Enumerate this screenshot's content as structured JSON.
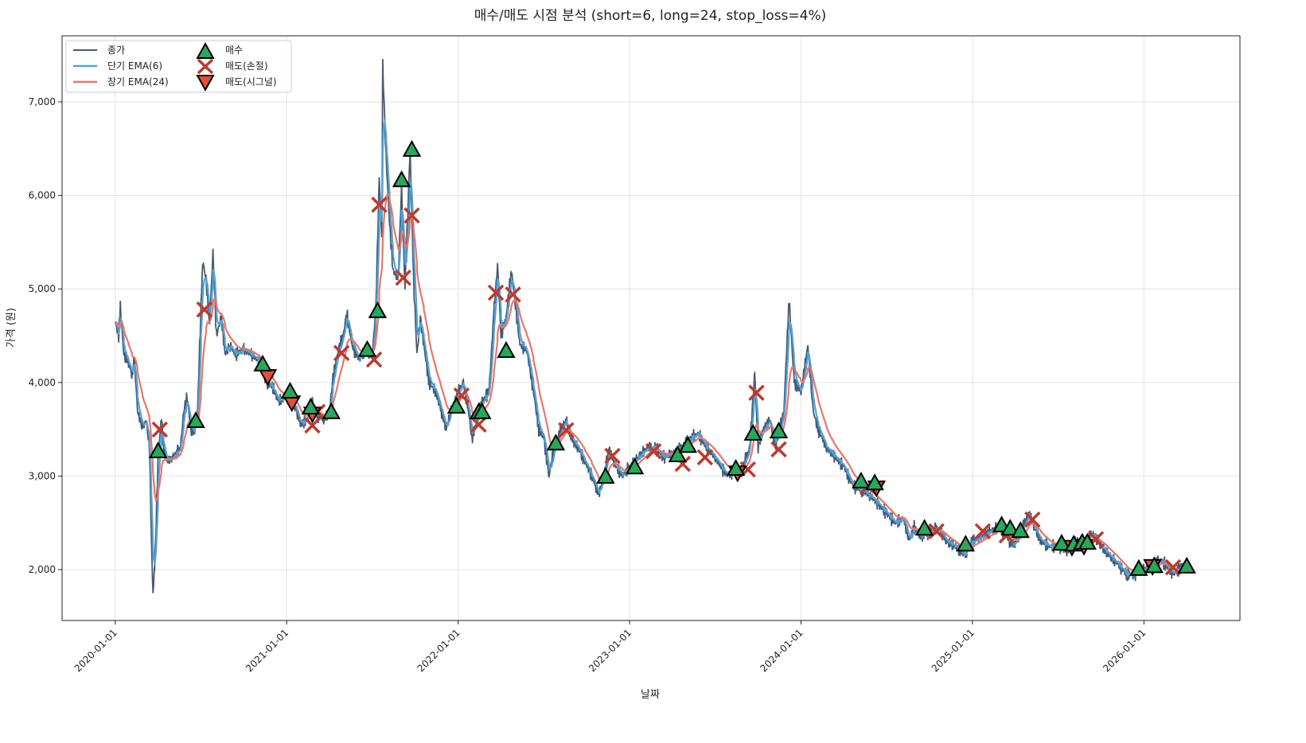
{
  "chart_data": {
    "type": "line",
    "title": "매수/매도 시점 분석 (short=6, long=24, stop_loss=4%)",
    "xlabel": "날짜",
    "ylabel": "가격 (원)",
    "xlim": [
      2019.69,
      2026.56
    ],
    "ylim": [
      1456,
      7706
    ],
    "grid": true,
    "legend_placement": "top-left",
    "x_ticks": [
      {
        "value": 2020,
        "label": "2020-01-01"
      },
      {
        "value": 2021,
        "label": "2021-01-01"
      },
      {
        "value": 2022,
        "label": "2022-01-01"
      },
      {
        "value": 2023,
        "label": "2023-01-01"
      },
      {
        "value": 2024,
        "label": "2024-01-01"
      },
      {
        "value": 2025,
        "label": "2025-01-01"
      },
      {
        "value": 2026,
        "label": "2026-01-01"
      }
    ],
    "y_ticks": [
      {
        "value": 2000,
        "label": "2,000"
      },
      {
        "value": 3000,
        "label": "3,000"
      },
      {
        "value": 4000,
        "label": "4,000"
      },
      {
        "value": 5000,
        "label": "5,000"
      },
      {
        "value": 6000,
        "label": "6,000"
      },
      {
        "value": 7000,
        "label": "7,000"
      }
    ],
    "legend": {
      "close": "종가",
      "ema_short": "단기 EMA(6)",
      "ema_long": "장기 EMA(24)",
      "buy": "매수",
      "sell_stop": "매도(손절)",
      "sell_signal": "매도(시그널)"
    },
    "colors": {
      "close": "#4a5a6e",
      "ema_short": "#4ea3dc",
      "ema_long": "#ee7466",
      "buy": "#27a85a",
      "sell_stop": "#c0392b",
      "sell_signal": "#e74c3c"
    },
    "ema_spans": {
      "short": 6,
      "long": 24
    },
    "close": [
      [
        2020.0,
        4650
      ],
      [
        2020.02,
        4500
      ],
      [
        2020.03,
        4800
      ],
      [
        2020.05,
        4300
      ],
      [
        2020.08,
        4200
      ],
      [
        2020.1,
        4050
      ],
      [
        2020.11,
        4300
      ],
      [
        2020.13,
        3700
      ],
      [
        2020.16,
        3500
      ],
      [
        2020.18,
        3600
      ],
      [
        2020.2,
        3300
      ],
      [
        2020.21,
        2400
      ],
      [
        2020.22,
        1750
      ],
      [
        2020.23,
        2000
      ],
      [
        2020.25,
        3200
      ],
      [
        2020.27,
        3650
      ],
      [
        2020.28,
        3300
      ],
      [
        2020.3,
        3150
      ],
      [
        2020.33,
        3200
      ],
      [
        2020.36,
        3250
      ],
      [
        2020.38,
        3300
      ],
      [
        2020.4,
        3700
      ],
      [
        2020.42,
        3850
      ],
      [
        2020.44,
        3500
      ],
      [
        2020.46,
        3450
      ],
      [
        2020.48,
        3700
      ],
      [
        2020.5,
        4800
      ],
      [
        2020.51,
        5300
      ],
      [
        2020.53,
        5100
      ],
      [
        2020.55,
        4600
      ],
      [
        2020.57,
        5400
      ],
      [
        2020.59,
        4500
      ],
      [
        2020.62,
        4700
      ],
      [
        2020.64,
        4300
      ],
      [
        2020.67,
        4400
      ],
      [
        2020.7,
        4300
      ],
      [
        2020.75,
        4350
      ],
      [
        2020.8,
        4300
      ],
      [
        2020.85,
        4200
      ],
      [
        2020.88,
        4000
      ],
      [
        2020.92,
        3950
      ],
      [
        2020.95,
        3800
      ],
      [
        2021.0,
        3850
      ],
      [
        2021.05,
        3750
      ],
      [
        2021.08,
        3550
      ],
      [
        2021.12,
        3600
      ],
      [
        2021.15,
        3800
      ],
      [
        2021.18,
        3650
      ],
      [
        2021.22,
        3600
      ],
      [
        2021.25,
        3700
      ],
      [
        2021.27,
        4050
      ],
      [
        2021.3,
        4350
      ],
      [
        2021.33,
        4500
      ],
      [
        2021.35,
        4750
      ],
      [
        2021.38,
        4400
      ],
      [
        2021.42,
        4250
      ],
      [
        2021.46,
        4350
      ],
      [
        2021.5,
        4300
      ],
      [
        2021.52,
        4800
      ],
      [
        2021.54,
        6200
      ],
      [
        2021.555,
        5500
      ],
      [
        2021.56,
        7400
      ],
      [
        2021.58,
        6400
      ],
      [
        2021.6,
        5700
      ],
      [
        2021.62,
        5200
      ],
      [
        2021.65,
        5100
      ],
      [
        2021.67,
        6100
      ],
      [
        2021.69,
        5000
      ],
      [
        2021.72,
        6500
      ],
      [
        2021.74,
        5100
      ],
      [
        2021.76,
        4300
      ],
      [
        2021.78,
        4700
      ],
      [
        2021.8,
        4400
      ],
      [
        2021.83,
        4000
      ],
      [
        2021.87,
        3900
      ],
      [
        2021.9,
        3700
      ],
      [
        2021.93,
        3500
      ],
      [
        2021.96,
        3700
      ],
      [
        2022.0,
        3900
      ],
      [
        2022.03,
        4000
      ],
      [
        2022.06,
        3700
      ],
      [
        2022.08,
        3400
      ],
      [
        2022.11,
        3600
      ],
      [
        2022.14,
        3800
      ],
      [
        2022.18,
        3900
      ],
      [
        2022.21,
        4800
      ],
      [
        2022.23,
        5250
      ],
      [
        2022.25,
        4500
      ],
      [
        2022.28,
        4700
      ],
      [
        2022.31,
        5200
      ],
      [
        2022.33,
        4900
      ],
      [
        2022.36,
        4400
      ],
      [
        2022.4,
        4350
      ],
      [
        2022.44,
        3900
      ],
      [
        2022.47,
        3500
      ],
      [
        2022.5,
        3400
      ],
      [
        2022.53,
        3000
      ],
      [
        2022.56,
        3300
      ],
      [
        2022.6,
        3500
      ],
      [
        2022.63,
        3600
      ],
      [
        2022.66,
        3400
      ],
      [
        2022.7,
        3300
      ],
      [
        2022.74,
        3150
      ],
      [
        2022.78,
        3000
      ],
      [
        2022.82,
        2800
      ],
      [
        2022.85,
        3000
      ],
      [
        2022.88,
        3300
      ],
      [
        2022.92,
        3100
      ],
      [
        2022.96,
        3000
      ],
      [
        2023.0,
        3100
      ],
      [
        2023.05,
        3200
      ],
      [
        2023.1,
        3300
      ],
      [
        2023.15,
        3300
      ],
      [
        2023.2,
        3200
      ],
      [
        2023.25,
        3250
      ],
      [
        2023.3,
        3300
      ],
      [
        2023.35,
        3400
      ],
      [
        2023.4,
        3450
      ],
      [
        2023.45,
        3300
      ],
      [
        2023.5,
        3200
      ],
      [
        2023.55,
        3050
      ],
      [
        2023.58,
        3000
      ],
      [
        2023.62,
        3050
      ],
      [
        2023.66,
        3100
      ],
      [
        2023.7,
        3300
      ],
      [
        2023.73,
        4100
      ],
      [
        2023.75,
        3300
      ],
      [
        2023.78,
        3500
      ],
      [
        2023.82,
        3600
      ],
      [
        2023.85,
        3300
      ],
      [
        2023.9,
        3700
      ],
      [
        2023.93,
        4900
      ],
      [
        2023.96,
        4000
      ],
      [
        2024.0,
        3900
      ],
      [
        2024.04,
        4400
      ],
      [
        2024.07,
        3700
      ],
      [
        2024.1,
        3500
      ],
      [
        2024.15,
        3300
      ],
      [
        2024.2,
        3200
      ],
      [
        2024.25,
        3100
      ],
      [
        2024.3,
        2900
      ],
      [
        2024.35,
        2850
      ],
      [
        2024.4,
        2800
      ],
      [
        2024.45,
        2700
      ],
      [
        2024.5,
        2600
      ],
      [
        2024.55,
        2500
      ],
      [
        2024.6,
        2550
      ],
      [
        2024.63,
        2300
      ],
      [
        2024.66,
        2450
      ],
      [
        2024.7,
        2350
      ],
      [
        2024.75,
        2400
      ],
      [
        2024.8,
        2450
      ],
      [
        2024.85,
        2300
      ],
      [
        2024.9,
        2250
      ],
      [
        2024.95,
        2150
      ],
      [
        2025.0,
        2300
      ],
      [
        2025.05,
        2350
      ],
      [
        2025.1,
        2400
      ],
      [
        2025.15,
        2450
      ],
      [
        2025.2,
        2350
      ],
      [
        2025.24,
        2250
      ],
      [
        2025.28,
        2400
      ],
      [
        2025.33,
        2600
      ],
      [
        2025.36,
        2450
      ],
      [
        2025.4,
        2300
      ],
      [
        2025.45,
        2250
      ],
      [
        2025.5,
        2250
      ],
      [
        2025.55,
        2200
      ],
      [
        2025.6,
        2300
      ],
      [
        2025.65,
        2250
      ],
      [
        2025.7,
        2400
      ],
      [
        2025.75,
        2250
      ],
      [
        2025.8,
        2150
      ],
      [
        2025.85,
        2050
      ],
      [
        2025.9,
        1950
      ],
      [
        2025.95,
        1950
      ],
      [
        2026.0,
        2000
      ],
      [
        2026.05,
        2050
      ],
      [
        2026.1,
        2100
      ],
      [
        2026.15,
        2000
      ],
      [
        2026.18,
        1950
      ],
      [
        2026.22,
        2050
      ],
      [
        2026.25,
        2050
      ]
    ],
    "buy": [
      [
        2020.25,
        3267
      ],
      [
        2020.47,
        3590
      ],
      [
        2020.86,
        4195
      ],
      [
        2021.02,
        3905
      ],
      [
        2021.14,
        3735
      ],
      [
        2021.26,
        3685
      ],
      [
        2021.47,
        4350
      ],
      [
        2021.53,
        4765
      ],
      [
        2021.67,
        6165
      ],
      [
        2021.73,
        6490
      ],
      [
        2021.99,
        3745
      ],
      [
        2022.12,
        3685
      ],
      [
        2022.14,
        3685
      ],
      [
        2022.28,
        4340
      ],
      [
        2022.57,
        3350
      ],
      [
        2022.86,
        2995
      ],
      [
        2023.03,
        3095
      ],
      [
        2023.28,
        3225
      ],
      [
        2023.34,
        3325
      ],
      [
        2023.62,
        3080
      ],
      [
        2023.72,
        3455
      ],
      [
        2023.87,
        3480
      ],
      [
        2024.35,
        2945
      ],
      [
        2024.43,
        2925
      ],
      [
        2024.72,
        2440
      ],
      [
        2024.96,
        2270
      ],
      [
        2025.17,
        2475
      ],
      [
        2025.22,
        2440
      ],
      [
        2025.28,
        2415
      ],
      [
        2025.52,
        2280
      ],
      [
        2025.59,
        2270
      ],
      [
        2025.64,
        2290
      ],
      [
        2025.67,
        2290
      ],
      [
        2025.97,
        2010
      ],
      [
        2026.06,
        2040
      ],
      [
        2026.25,
        2035
      ]
    ],
    "sell_stop": [
      [
        2020.26,
        3497
      ],
      [
        2020.52,
        4780
      ],
      [
        2021.15,
        3540
      ],
      [
        2021.18,
        3685
      ],
      [
        2021.32,
        4315
      ],
      [
        2021.51,
        4245
      ],
      [
        2021.54,
        5900
      ],
      [
        2021.68,
        5120
      ],
      [
        2021.73,
        5785
      ],
      [
        2022.02,
        3860
      ],
      [
        2022.12,
        3550
      ],
      [
        2022.22,
        4960
      ],
      [
        2022.32,
        4940
      ],
      [
        2022.63,
        3490
      ],
      [
        2022.9,
        3215
      ],
      [
        2023.14,
        3265
      ],
      [
        2023.31,
        3130
      ],
      [
        2023.44,
        3200
      ],
      [
        2023.69,
        3070
      ],
      [
        2023.74,
        3890
      ],
      [
        2023.87,
        3285
      ],
      [
        2024.39,
        2890
      ],
      [
        2024.79,
        2410
      ],
      [
        2025.06,
        2410
      ],
      [
        2025.2,
        2365
      ],
      [
        2025.35,
        2535
      ],
      [
        2025.72,
        2325
      ],
      [
        2026.17,
        2025
      ]
    ],
    "sell_signal": [
      [
        2020.89,
        4065
      ],
      [
        2021.03,
        3785
      ],
      [
        2021.15,
        3665
      ],
      [
        2023.63,
        3035
      ],
      [
        2024.44,
        2875
      ],
      [
        2025.58,
        2240
      ],
      [
        2025.65,
        2250
      ],
      [
        2026.05,
        2035
      ]
    ]
  }
}
